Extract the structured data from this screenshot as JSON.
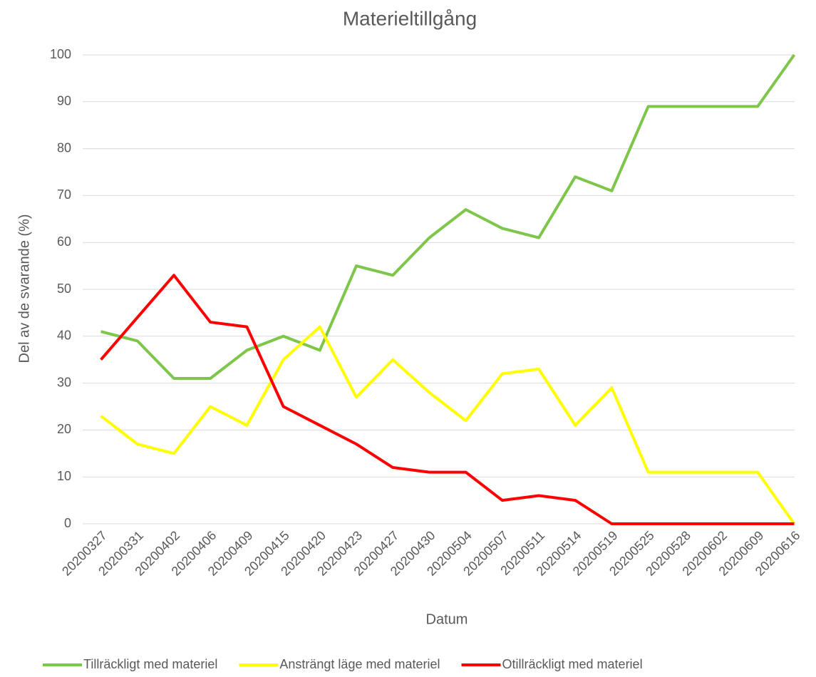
{
  "chart_data": {
    "type": "line",
    "title": "Materieltillgång",
    "x_label": "Datum",
    "y_label": "Del av de svarande (%)",
    "categories": [
      "20200327",
      "20200331",
      "20200402",
      "20200406",
      "20200409",
      "20200415",
      "20200420",
      "20200423",
      "20200427",
      "20200430",
      "20200504",
      "20200507",
      "20200511",
      "20200514",
      "20200519",
      "20200525",
      "20200528",
      "20200602",
      "20200609",
      "20200616"
    ],
    "series": [
      {
        "name": "Tillräckligt med materiel",
        "color": "#7dc64a",
        "values": [
          41,
          39,
          31,
          31,
          37,
          40,
          37,
          55,
          53,
          61,
          67,
          63,
          61,
          74,
          71,
          89,
          89,
          89,
          89,
          100
        ]
      },
      {
        "name": "Ansträngt läge med materiel",
        "color": "#ffff00",
        "values": [
          23,
          17,
          15,
          25,
          21,
          35,
          42,
          27,
          35,
          28,
          22,
          32,
          33,
          21,
          29,
          11,
          11,
          11,
          11,
          0
        ]
      },
      {
        "name": "Otillräckligt med materiel",
        "color": "#ff0000",
        "values": [
          35,
          44,
          53,
          43,
          42,
          25,
          21,
          17,
          12,
          11,
          11,
          5,
          6,
          5,
          0,
          0,
          0,
          0,
          0,
          0
        ]
      }
    ],
    "ylim": [
      0,
      100
    ],
    "yticks": [
      0,
      10,
      20,
      30,
      40,
      50,
      60,
      70,
      80,
      90,
      100
    ],
    "grid": true,
    "legend": "bottom"
  }
}
